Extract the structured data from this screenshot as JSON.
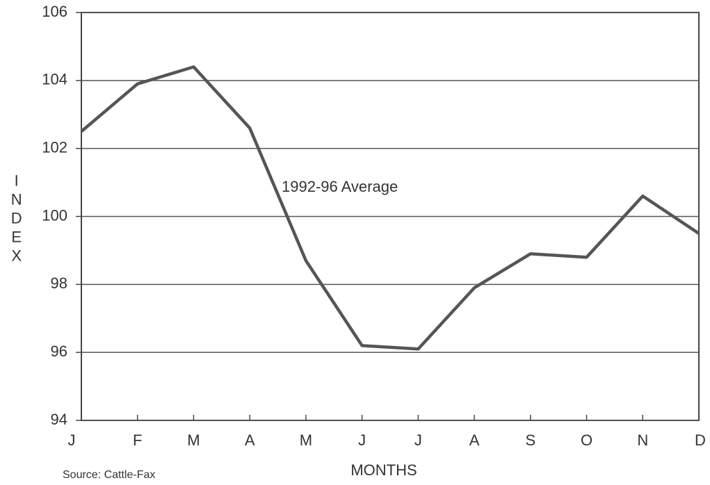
{
  "chart_data": {
    "type": "line",
    "categories": [
      "J",
      "F",
      "M",
      "A",
      "M",
      "J",
      "J",
      "A",
      "S",
      "O",
      "N",
      "D"
    ],
    "series": [
      {
        "name": "1992-96 Average",
        "color": "#555555",
        "values": [
          102.5,
          103.9,
          104.4,
          102.6,
          98.7,
          96.2,
          96.1,
          97.9,
          98.9,
          98.8,
          100.6,
          99.5
        ]
      }
    ],
    "ylim": [
      94,
      106
    ],
    "yticks": [
      94,
      96,
      98,
      100,
      102,
      104,
      106
    ],
    "grid": true,
    "ylabel": "INDEX",
    "xlabel": "MONTHS",
    "source": "Source: Cattle-Fax"
  }
}
